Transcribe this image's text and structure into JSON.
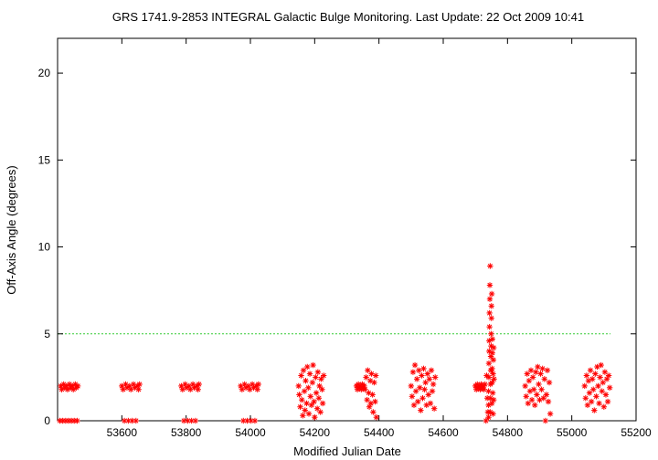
{
  "chart_data": {
    "type": "scatter",
    "title": "GRS 1741.9-2853   INTEGRAL Galactic Bulge Monitoring.  Last Update: 22 Oct 2009 10:41",
    "xlabel": "Modified Julian Date",
    "ylabel": "Off-Axis Angle (degrees)",
    "xlim": [
      53400,
      55200
    ],
    "ylim": [
      0,
      22
    ],
    "grid": false,
    "x_ticks": [
      53600,
      53800,
      54000,
      54200,
      54400,
      54600,
      54800,
      55000,
      55200
    ],
    "y_ticks": [
      0,
      5,
      10,
      15,
      20
    ],
    "reference_line": {
      "y": 5,
      "color": "#33cc33",
      "style": "dashed"
    },
    "marker": {
      "shape": "asterisk",
      "color": "#ff0000"
    },
    "series": [
      {
        "points": [
          [
            53407,
            0.0
          ],
          [
            53410,
            2.0
          ],
          [
            53413,
            1.8
          ],
          [
            53416,
            0.0
          ],
          [
            53419,
            2.1
          ],
          [
            53422,
            1.9
          ],
          [
            53425,
            0.0
          ],
          [
            53428,
            2.0
          ],
          [
            53431,
            1.8
          ],
          [
            53434,
            0.0
          ],
          [
            53437,
            2.1
          ],
          [
            53440,
            1.9
          ],
          [
            53443,
            0.0
          ],
          [
            53446,
            2.0
          ],
          [
            53449,
            1.8
          ],
          [
            53452,
            0.0
          ],
          [
            53455,
            2.1
          ],
          [
            53458,
            1.9
          ],
          [
            53461,
            0.0
          ],
          [
            53463,
            2.0
          ],
          [
            53600,
            2.0
          ],
          [
            53604,
            1.8
          ],
          [
            53608,
            0.0
          ],
          [
            53612,
            2.1
          ],
          [
            53616,
            1.9
          ],
          [
            53620,
            0.0
          ],
          [
            53624,
            2.0
          ],
          [
            53628,
            1.8
          ],
          [
            53632,
            0.0
          ],
          [
            53636,
            2.1
          ],
          [
            53640,
            1.9
          ],
          [
            53644,
            0.0
          ],
          [
            53648,
            2.0
          ],
          [
            53652,
            1.8
          ],
          [
            53655,
            2.1
          ],
          [
            53785,
            2.0
          ],
          [
            53789,
            1.8
          ],
          [
            53793,
            0.0
          ],
          [
            53797,
            2.1
          ],
          [
            53801,
            1.9
          ],
          [
            53805,
            0.0
          ],
          [
            53809,
            2.0
          ],
          [
            53813,
            1.8
          ],
          [
            53817,
            0.0
          ],
          [
            53821,
            2.1
          ],
          [
            53825,
            1.9
          ],
          [
            53829,
            0.0
          ],
          [
            53833,
            2.0
          ],
          [
            53837,
            1.8
          ],
          [
            53840,
            2.1
          ],
          [
            53970,
            2.0
          ],
          [
            53974,
            1.8
          ],
          [
            53978,
            0.0
          ],
          [
            53982,
            2.1
          ],
          [
            53986,
            1.9
          ],
          [
            53990,
            0.0
          ],
          [
            53994,
            2.0
          ],
          [
            53998,
            1.8
          ],
          [
            54002,
            0.0
          ],
          [
            54006,
            2.1
          ],
          [
            54010,
            1.9
          ],
          [
            54014,
            0.0
          ],
          [
            54018,
            2.0
          ],
          [
            54022,
            1.8
          ],
          [
            54025,
            2.1
          ],
          [
            54150,
            2.0
          ],
          [
            54152,
            1.5
          ],
          [
            54155,
            0.8
          ],
          [
            54158,
            2.6
          ],
          [
            54160,
            1.2
          ],
          [
            54163,
            0.3
          ],
          [
            54165,
            2.9
          ],
          [
            54168,
            1.7
          ],
          [
            54170,
            0.6
          ],
          [
            54172,
            2.3
          ],
          [
            54175,
            1.0
          ],
          [
            54177,
            3.1
          ],
          [
            54180,
            1.9
          ],
          [
            54182,
            0.4
          ],
          [
            54185,
            2.7
          ],
          [
            54187,
            1.4
          ],
          [
            54190,
            0.9
          ],
          [
            54193,
            2.2
          ],
          [
            54195,
            3.2
          ],
          [
            54198,
            1.1
          ],
          [
            54200,
            0.2
          ],
          [
            54203,
            2.5
          ],
          [
            54205,
            1.6
          ],
          [
            54208,
            0.7
          ],
          [
            54210,
            2.8
          ],
          [
            54213,
            1.3
          ],
          [
            54215,
            2.0
          ],
          [
            54218,
            0.5
          ],
          [
            54220,
            2.4
          ],
          [
            54223,
            1.8
          ],
          [
            54225,
            1.0
          ],
          [
            54228,
            2.6
          ],
          [
            54330,
            2.0
          ],
          [
            54333,
            1.8
          ],
          [
            54336,
            2.1
          ],
          [
            54339,
            1.9
          ],
          [
            54342,
            2.0
          ],
          [
            54345,
            1.8
          ],
          [
            54348,
            2.1
          ],
          [
            54351,
            1.9
          ],
          [
            54354,
            2.0
          ],
          [
            54357,
            1.8
          ],
          [
            54360,
            2.5
          ],
          [
            54363,
            1.2
          ],
          [
            54365,
            2.9
          ],
          [
            54368,
            1.6
          ],
          [
            54370,
            0.8
          ],
          [
            54373,
            2.3
          ],
          [
            54375,
            1.0
          ],
          [
            54377,
            2.7
          ],
          [
            54380,
            1.5
          ],
          [
            54382,
            0.5
          ],
          [
            54385,
            2.2
          ],
          [
            54388,
            1.1
          ],
          [
            54390,
            2.6
          ],
          [
            54392,
            0.2
          ],
          [
            54500,
            2.0
          ],
          [
            54503,
            1.4
          ],
          [
            54506,
            2.8
          ],
          [
            54509,
            0.9
          ],
          [
            54512,
            3.2
          ],
          [
            54515,
            1.7
          ],
          [
            54518,
            2.4
          ],
          [
            54521,
            1.1
          ],
          [
            54524,
            2.9
          ],
          [
            54527,
            1.9
          ],
          [
            54530,
            0.6
          ],
          [
            54533,
            2.6
          ],
          [
            54536,
            1.3
          ],
          [
            54539,
            3.0
          ],
          [
            54542,
            1.8
          ],
          [
            54545,
            2.2
          ],
          [
            54548,
            0.9
          ],
          [
            54551,
            2.7
          ],
          [
            54554,
            1.5
          ],
          [
            54557,
            2.4
          ],
          [
            54560,
            1.0
          ],
          [
            54563,
            2.9
          ],
          [
            54566,
            1.7
          ],
          [
            54569,
            2.1
          ],
          [
            54572,
            0.7
          ],
          [
            54575,
            2.5
          ],
          [
            54700,
            2.0
          ],
          [
            54703,
            1.8
          ],
          [
            54706,
            2.1
          ],
          [
            54709,
            1.9
          ],
          [
            54712,
            2.0
          ],
          [
            54715,
            1.8
          ],
          [
            54718,
            2.1
          ],
          [
            54721,
            1.9
          ],
          [
            54724,
            2.0
          ],
          [
            54727,
            1.8
          ],
          [
            54730,
            2.1
          ],
          [
            54733,
            0.0
          ],
          [
            54735,
            2.6
          ],
          [
            54737,
            1.3
          ],
          [
            54739,
            0.5
          ],
          [
            54741,
            0.2
          ],
          [
            54741,
            0.9
          ],
          [
            54741,
            1.7
          ],
          [
            54742,
            2.5
          ],
          [
            54742,
            3.3
          ],
          [
            54743,
            4.0
          ],
          [
            54743,
            4.6
          ],
          [
            54744,
            5.4
          ],
          [
            54744,
            6.2
          ],
          [
            54745,
            7.0
          ],
          [
            54745,
            7.8
          ],
          [
            54746,
            8.9
          ],
          [
            54746,
            0.5
          ],
          [
            54747,
            1.3
          ],
          [
            54747,
            2.1
          ],
          [
            54748,
            2.9
          ],
          [
            54748,
            3.7
          ],
          [
            54749,
            4.3
          ],
          [
            54749,
            5.0
          ],
          [
            54750,
            5.9
          ],
          [
            54750,
            6.6
          ],
          [
            54751,
            7.3
          ],
          [
            54751,
            1.0
          ],
          [
            54752,
            2.2
          ],
          [
            54752,
            3.0
          ],
          [
            54753,
            3.9
          ],
          [
            54753,
            4.7
          ],
          [
            54754,
            1.6
          ],
          [
            54755,
            0.4
          ],
          [
            54755,
            2.7
          ],
          [
            54756,
            3.5
          ],
          [
            54757,
            1.2
          ],
          [
            54757,
            4.2
          ],
          [
            54758,
            2.4
          ],
          [
            54855,
            2.0
          ],
          [
            54858,
            1.4
          ],
          [
            54861,
            2.7
          ],
          [
            54864,
            1.0
          ],
          [
            54867,
            2.3
          ],
          [
            54870,
            1.7
          ],
          [
            54873,
            2.9
          ],
          [
            54876,
            1.2
          ],
          [
            54879,
            2.5
          ],
          [
            54882,
            1.8
          ],
          [
            54885,
            0.9
          ],
          [
            54888,
            2.8
          ],
          [
            54891,
            1.5
          ],
          [
            54894,
            3.1
          ],
          [
            54897,
            2.1
          ],
          [
            54900,
            1.2
          ],
          [
            54903,
            2.7
          ],
          [
            54906,
            1.8
          ],
          [
            54909,
            3.0
          ],
          [
            54912,
            1.3
          ],
          [
            54915,
            2.4
          ],
          [
            54918,
            0.0
          ],
          [
            54921,
            1.5
          ],
          [
            54924,
            2.9
          ],
          [
            54927,
            1.1
          ],
          [
            54930,
            2.2
          ],
          [
            54933,
            0.4
          ],
          [
            55040,
            2.0
          ],
          [
            55043,
            1.3
          ],
          [
            55046,
            2.6
          ],
          [
            55049,
            0.9
          ],
          [
            55052,
            2.3
          ],
          [
            55055,
            1.6
          ],
          [
            55058,
            2.9
          ],
          [
            55061,
            1.1
          ],
          [
            55064,
            2.4
          ],
          [
            55067,
            1.8
          ],
          [
            55070,
            0.6
          ],
          [
            55073,
            2.7
          ],
          [
            55076,
            1.4
          ],
          [
            55079,
            3.1
          ],
          [
            55082,
            2.0
          ],
          [
            55085,
            1.0
          ],
          [
            55088,
            2.5
          ],
          [
            55091,
            3.2
          ],
          [
            55094,
            1.7
          ],
          [
            55097,
            2.2
          ],
          [
            55100,
            0.8
          ],
          [
            55103,
            2.8
          ],
          [
            55106,
            1.5
          ],
          [
            55109,
            2.4
          ],
          [
            55112,
            1.1
          ],
          [
            55115,
            2.6
          ],
          [
            55118,
            1.9
          ]
        ]
      }
    ]
  }
}
